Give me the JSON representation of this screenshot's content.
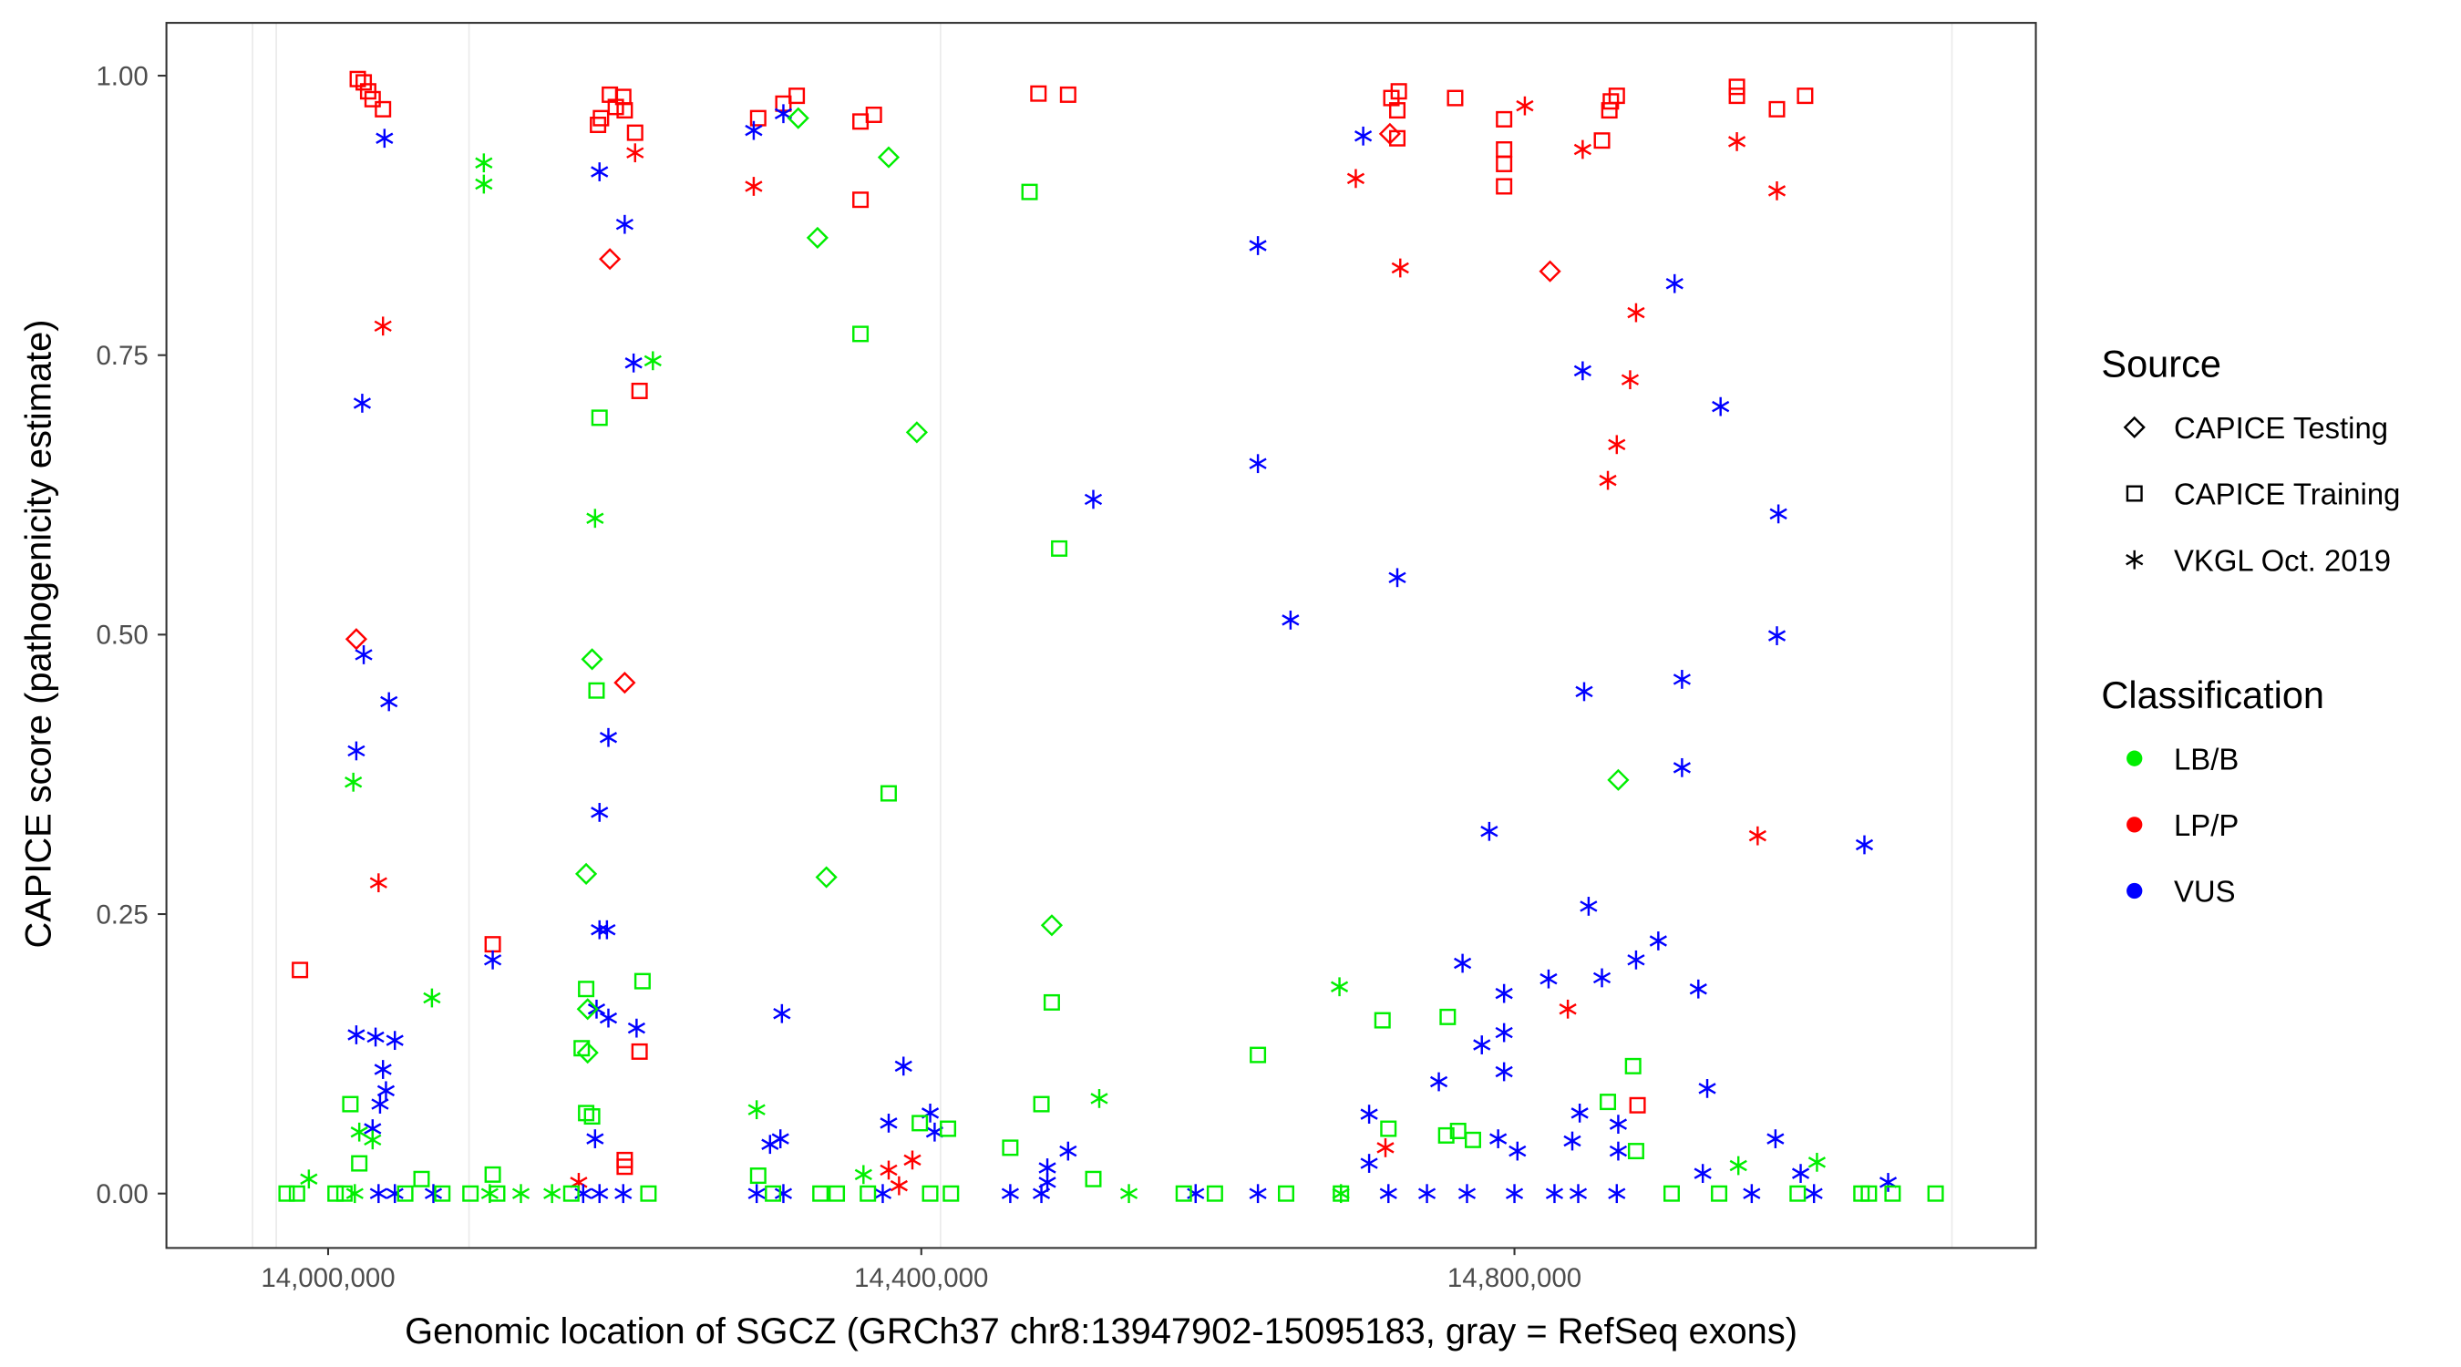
{
  "chart_data": {
    "type": "scatter",
    "title": "",
    "xlabel": "Genomic location of SGCZ (GRCh37 chr8:13947902-15095183, gray = RefSeq exons)",
    "ylabel": "CAPICE score (pathogenicity estimate)",
    "xlim": [
      13900000,
      15160000
    ],
    "ylim": [
      -0.05,
      1.05
    ],
    "x_ticks": [
      14000000,
      14400000,
      14800000
    ],
    "x_tick_labels": [
      "14,000,000",
      "14,400,000",
      "14,800,000"
    ],
    "y_ticks": [
      0,
      0.25,
      0.5,
      0.75,
      1.0
    ],
    "y_tick_labels": [
      "0.00",
      "0.25",
      "0.50",
      "0.75",
      "1.00"
    ],
    "grid": false,
    "exon_positions": [
      13949000,
      13965000,
      14095000,
      14413000,
      15095000
    ],
    "exon_color": "#ebebeb",
    "legend_placement": "right",
    "legend_source": {
      "title": "Source",
      "entries": [
        "CAPICE Testing",
        "CAPICE Training",
        "VKGL Oct. 2019"
      ],
      "shapes": [
        "diamond",
        "square",
        "asterisk"
      ]
    },
    "legend_classification": {
      "title": "Classification",
      "entries": [
        "LB/B",
        "LP/P",
        "VUS"
      ],
      "colors": [
        "#00ee00",
        "#ff0000",
        "#0000ff"
      ]
    },
    "point_fields": [
      "x",
      "y",
      "source_idx",
      "class_idx"
    ],
    "points": [
      [
        14020000,
        0.997,
        1,
        1
      ],
      [
        14024000,
        0.994,
        1,
        1
      ],
      [
        14027000,
        0.986,
        1,
        1
      ],
      [
        14030000,
        0.979,
        1,
        1
      ],
      [
        14037000,
        0.97,
        1,
        1
      ],
      [
        13981000,
        0.2,
        1,
        1
      ],
      [
        14111000,
        0.223,
        1,
        1
      ],
      [
        14182000,
        0.956,
        1,
        1
      ],
      [
        14184000,
        0.962,
        1,
        1
      ],
      [
        14190000,
        0.983,
        1,
        1
      ],
      [
        14194000,
        0.972,
        1,
        1
      ],
      [
        14199000,
        0.981,
        1,
        1
      ],
      [
        14200000,
        0.969,
        1,
        1
      ],
      [
        14207000,
        0.949,
        1,
        1
      ],
      [
        14210000,
        0.718,
        1,
        1
      ],
      [
        14210000,
        0.127,
        1,
        1
      ],
      [
        14200000,
        0.03,
        1,
        1
      ],
      [
        14200000,
        0.024,
        1,
        1
      ],
      [
        14290000,
        0.962,
        1,
        1
      ],
      [
        14307000,
        0.975,
        1,
        1
      ],
      [
        14316000,
        0.982,
        1,
        1
      ],
      [
        14359000,
        0.959,
        1,
        1
      ],
      [
        14368000,
        0.965,
        1,
        1
      ],
      [
        14359000,
        0.889,
        1,
        1
      ],
      [
        14479000,
        0.984,
        1,
        1
      ],
      [
        14499000,
        0.983,
        1,
        1
      ],
      [
        14717000,
        0.98,
        1,
        1
      ],
      [
        14722000,
        0.986,
        1,
        1
      ],
      [
        14721000,
        0.969,
        1,
        1
      ],
      [
        14721000,
        0.944,
        1,
        1
      ],
      [
        14760000,
        0.98,
        1,
        1
      ],
      [
        14793000,
        0.961,
        1,
        1
      ],
      [
        14793000,
        0.934,
        1,
        1
      ],
      [
        14793000,
        0.921,
        1,
        1
      ],
      [
        14793000,
        0.901,
        1,
        1
      ],
      [
        14859000,
        0.942,
        1,
        1
      ],
      [
        14864000,
        0.969,
        1,
        1
      ],
      [
        14865000,
        0.977,
        1,
        1
      ],
      [
        14869000,
        0.982,
        1,
        1
      ],
      [
        14950000,
        0.99,
        1,
        1
      ],
      [
        14950000,
        0.982,
        1,
        1
      ],
      [
        14977000,
        0.97,
        1,
        1
      ],
      [
        14996000,
        0.982,
        1,
        1
      ],
      [
        14883000,
        0.079,
        1,
        1
      ],
      [
        14019000,
        0.496,
        0,
        1
      ],
      [
        14190000,
        0.836,
        0,
        1
      ],
      [
        14200000,
        0.457,
        0,
        1
      ],
      [
        14716000,
        0.948,
        0,
        1
      ],
      [
        14824000,
        0.825,
        0,
        1
      ],
      [
        14037000,
        0.776,
        2,
        1
      ],
      [
        14034000,
        0.278,
        2,
        1
      ],
      [
        14207000,
        0.931,
        2,
        1
      ],
      [
        14287000,
        0.901,
        2,
        1
      ],
      [
        14807000,
        0.973,
        2,
        1
      ],
      [
        14693000,
        0.908,
        2,
        1
      ],
      [
        14723000,
        0.828,
        2,
        1
      ],
      [
        14846000,
        0.934,
        2,
        1
      ],
      [
        14950000,
        0.941,
        2,
        1
      ],
      [
        14977000,
        0.897,
        2,
        1
      ],
      [
        14882000,
        0.788,
        2,
        1
      ],
      [
        14878000,
        0.728,
        2,
        1
      ],
      [
        14869000,
        0.67,
        2,
        1
      ],
      [
        14863000,
        0.638,
        2,
        1
      ],
      [
        14964000,
        0.32,
        2,
        1
      ],
      [
        14836000,
        0.165,
        2,
        1
      ],
      [
        14713000,
        0.041,
        2,
        1
      ],
      [
        14378000,
        0.021,
        2,
        1
      ],
      [
        14394000,
        0.03,
        2,
        1
      ],
      [
        14385000,
        0.007,
        2,
        1
      ],
      [
        14169000,
        0.01,
        2,
        1
      ],
      [
        14038000,
        0.944,
        2,
        2
      ],
      [
        14023000,
        0.707,
        2,
        2
      ],
      [
        14024000,
        0.482,
        2,
        2
      ],
      [
        14041000,
        0.44,
        2,
        2
      ],
      [
        14019000,
        0.396,
        2,
        2
      ],
      [
        14111000,
        0.209,
        2,
        2
      ],
      [
        14183000,
        0.914,
        2,
        2
      ],
      [
        14200000,
        0.867,
        2,
        2
      ],
      [
        14206000,
        0.743,
        2,
        2
      ],
      [
        14189000,
        0.408,
        2,
        2
      ],
      [
        14183000,
        0.341,
        2,
        2
      ],
      [
        14183000,
        0.236,
        2,
        2
      ],
      [
        14188000,
        0.236,
        2,
        2
      ],
      [
        14181000,
        0.165,
        2,
        2
      ],
      [
        14189000,
        0.157,
        2,
        2
      ],
      [
        14208000,
        0.148,
        2,
        2
      ],
      [
        14180000,
        0.049,
        2,
        2
      ],
      [
        14019000,
        0.142,
        2,
        2
      ],
      [
        14032000,
        0.14,
        2,
        2
      ],
      [
        14045000,
        0.137,
        2,
        2
      ],
      [
        14037000,
        0.111,
        2,
        2
      ],
      [
        14039000,
        0.092,
        2,
        2
      ],
      [
        14035000,
        0.08,
        2,
        2
      ],
      [
        14030000,
        0.058,
        2,
        2
      ],
      [
        14287000,
        0.951,
        2,
        2
      ],
      [
        14307000,
        0.966,
        2,
        2
      ],
      [
        14306000,
        0.161,
        2,
        2
      ],
      [
        14388000,
        0.114,
        2,
        2
      ],
      [
        14378000,
        0.063,
        2,
        2
      ],
      [
        14406000,
        0.072,
        2,
        2
      ],
      [
        14409000,
        0.055,
        2,
        2
      ],
      [
        14298000,
        0.044,
        2,
        2
      ],
      [
        14305000,
        0.049,
        2,
        2
      ],
      [
        14516000,
        0.621,
        2,
        2
      ],
      [
        14627000,
        0.848,
        2,
        2
      ],
      [
        14627000,
        0.653,
        2,
        2
      ],
      [
        14649000,
        0.513,
        2,
        2
      ],
      [
        14698000,
        0.946,
        2,
        2
      ],
      [
        14721000,
        0.551,
        2,
        2
      ],
      [
        14846000,
        0.736,
        2,
        2
      ],
      [
        14908000,
        0.814,
        2,
        2
      ],
      [
        14939000,
        0.704,
        2,
        2
      ],
      [
        14978000,
        0.608,
        2,
        2
      ],
      [
        14977000,
        0.499,
        2,
        2
      ],
      [
        14847000,
        0.449,
        2,
        2
      ],
      [
        14913000,
        0.46,
        2,
        2
      ],
      [
        14913000,
        0.381,
        2,
        2
      ],
      [
        14783000,
        0.324,
        2,
        2
      ],
      [
        15036000,
        0.312,
        2,
        2
      ],
      [
        14850000,
        0.257,
        2,
        2
      ],
      [
        14897000,
        0.226,
        2,
        2
      ],
      [
        14882000,
        0.209,
        2,
        2
      ],
      [
        14765000,
        0.206,
        2,
        2
      ],
      [
        14823000,
        0.192,
        2,
        2
      ],
      [
        14859000,
        0.193,
        2,
        2
      ],
      [
        14924000,
        0.183,
        2,
        2
      ],
      [
        14793000,
        0.179,
        2,
        2
      ],
      [
        14793000,
        0.144,
        2,
        2
      ],
      [
        14778000,
        0.133,
        2,
        2
      ],
      [
        14749000,
        0.1,
        2,
        2
      ],
      [
        14793000,
        0.109,
        2,
        2
      ],
      [
        14930000,
        0.094,
        2,
        2
      ],
      [
        14702000,
        0.071,
        2,
        2
      ],
      [
        14844000,
        0.072,
        2,
        2
      ],
      [
        14870000,
        0.062,
        2,
        2
      ],
      [
        14789000,
        0.049,
        2,
        2
      ],
      [
        14802000,
        0.038,
        2,
        2
      ],
      [
        14976000,
        0.049,
        2,
        2
      ],
      [
        14839000,
        0.047,
        2,
        2
      ],
      [
        14870000,
        0.038,
        2,
        2
      ],
      [
        14702000,
        0.027,
        2,
        2
      ],
      [
        14927000,
        0.018,
        2,
        2
      ],
      [
        14993000,
        0.018,
        2,
        2
      ],
      [
        15052000,
        0.01,
        2,
        2
      ],
      [
        14485000,
        0.023,
        2,
        2
      ],
      [
        14499000,
        0.038,
        2,
        2
      ],
      [
        14485000,
        0.01,
        2,
        2
      ],
      [
        14034000,
        0,
        2,
        2
      ],
      [
        14045000,
        0,
        2,
        2
      ],
      [
        14071000,
        0,
        2,
        2
      ],
      [
        14172000,
        0,
        2,
        2
      ],
      [
        14183000,
        0,
        2,
        2
      ],
      [
        14199000,
        0,
        2,
        2
      ],
      [
        14289000,
        0,
        2,
        2
      ],
      [
        14307000,
        0,
        2,
        2
      ],
      [
        14374000,
        0,
        2,
        2
      ],
      [
        14460000,
        0,
        2,
        2
      ],
      [
        14481000,
        0,
        2,
        2
      ],
      [
        14585000,
        0,
        2,
        2
      ],
      [
        14627000,
        0,
        2,
        2
      ],
      [
        14715000,
        0,
        2,
        2
      ],
      [
        14741000,
        0,
        2,
        2
      ],
      [
        14768000,
        0,
        2,
        2
      ],
      [
        14800000,
        0,
        2,
        2
      ],
      [
        14827000,
        0,
        2,
        2
      ],
      [
        14843000,
        0,
        2,
        2
      ],
      [
        14869000,
        0,
        2,
        2
      ],
      [
        14960000,
        0,
        2,
        2
      ],
      [
        15002000,
        0,
        2,
        2
      ],
      [
        14105000,
        0.922,
        2,
        0
      ],
      [
        14105000,
        0.903,
        2,
        0
      ],
      [
        14017000,
        0.368,
        2,
        0
      ],
      [
        14070000,
        0.175,
        2,
        0
      ],
      [
        14180000,
        0.604,
        2,
        0
      ],
      [
        14219000,
        0.745,
        2,
        0
      ],
      [
        14289000,
        0.075,
        2,
        0
      ],
      [
        14520000,
        0.085,
        2,
        0
      ],
      [
        14682000,
        0.185,
        2,
        0
      ],
      [
        14951000,
        0.025,
        2,
        0
      ],
      [
        15004000,
        0.028,
        2,
        0
      ],
      [
        14021000,
        0.055,
        2,
        0
      ],
      [
        14030000,
        0.048,
        2,
        0
      ],
      [
        14361000,
        0.017,
        2,
        0
      ],
      [
        13987000,
        0.013,
        2,
        0
      ],
      [
        14018000,
        0,
        2,
        0
      ],
      [
        14109000,
        0,
        2,
        0
      ],
      [
        14130000,
        0,
        2,
        0
      ],
      [
        14151000,
        0,
        2,
        0
      ],
      [
        14540000,
        0,
        2,
        0
      ],
      [
        14683000,
        0,
        2,
        0
      ],
      [
        14015000,
        0.08,
        1,
        0
      ],
      [
        14174000,
        0.183,
        1,
        0
      ],
      [
        14181000,
        0.45,
        1,
        0
      ],
      [
        14183000,
        0.694,
        1,
        0
      ],
      [
        14212000,
        0.19,
        1,
        0
      ],
      [
        14171000,
        0.13,
        1,
        0
      ],
      [
        14174000,
        0.072,
        1,
        0
      ],
      [
        14178000,
        0.069,
        1,
        0
      ],
      [
        14359000,
        0.769,
        1,
        0
      ],
      [
        14378000,
        0.358,
        1,
        0
      ],
      [
        14473000,
        0.896,
        1,
        0
      ],
      [
        14493000,
        0.577,
        1,
        0
      ],
      [
        14488000,
        0.171,
        1,
        0
      ],
      [
        14481000,
        0.08,
        1,
        0
      ],
      [
        14627000,
        0.124,
        1,
        0
      ],
      [
        14711000,
        0.155,
        1,
        0
      ],
      [
        14755000,
        0.158,
        1,
        0
      ],
      [
        14880000,
        0.114,
        1,
        0
      ],
      [
        14863000,
        0.082,
        1,
        0
      ],
      [
        14399000,
        0.063,
        1,
        0
      ],
      [
        14418000,
        0.058,
        1,
        0
      ],
      [
        14460000,
        0.041,
        1,
        0
      ],
      [
        14754000,
        0.052,
        1,
        0
      ],
      [
        14762000,
        0.056,
        1,
        0
      ],
      [
        14772000,
        0.048,
        1,
        0
      ],
      [
        14715000,
        0.058,
        1,
        0
      ],
      [
        14063000,
        0.013,
        1,
        0
      ],
      [
        14111000,
        0.017,
        1,
        0
      ],
      [
        14290000,
        0.016,
        1,
        0
      ],
      [
        14516000,
        0.013,
        1,
        0
      ],
      [
        14021000,
        0.027,
        1,
        0
      ],
      [
        14882000,
        0.038,
        1,
        0
      ],
      [
        13972000,
        0,
        1,
        0
      ],
      [
        13979000,
        0,
        1,
        0
      ],
      [
        14005000,
        0,
        1,
        0
      ],
      [
        14011000,
        0,
        1,
        0
      ],
      [
        14052000,
        0,
        1,
        0
      ],
      [
        14077000,
        0,
        1,
        0
      ],
      [
        14096000,
        0,
        1,
        0
      ],
      [
        14114000,
        0,
        1,
        0
      ],
      [
        14164000,
        0,
        1,
        0
      ],
      [
        14216000,
        0,
        1,
        0
      ],
      [
        14300000,
        0,
        1,
        0
      ],
      [
        14332000,
        0,
        1,
        0
      ],
      [
        14343000,
        0,
        1,
        0
      ],
      [
        14364000,
        0,
        1,
        0
      ],
      [
        14406000,
        0,
        1,
        0
      ],
      [
        14420000,
        0,
        1,
        0
      ],
      [
        14577000,
        0,
        1,
        0
      ],
      [
        14598000,
        0,
        1,
        0
      ],
      [
        14646000,
        0,
        1,
        0
      ],
      [
        14683000,
        0,
        1,
        0
      ],
      [
        14906000,
        0,
        1,
        0
      ],
      [
        14938000,
        0,
        1,
        0
      ],
      [
        14991000,
        0,
        1,
        0
      ],
      [
        15034000,
        0,
        1,
        0
      ],
      [
        15039000,
        0,
        1,
        0
      ],
      [
        15055000,
        0,
        1,
        0
      ],
      [
        15084000,
        0,
        1,
        0
      ],
      [
        14178000,
        0.478,
        0,
        0
      ],
      [
        14174000,
        0.286,
        0,
        0
      ],
      [
        14175000,
        0.126,
        0,
        0
      ],
      [
        14175000,
        0.165,
        0,
        0
      ],
      [
        14317000,
        0.962,
        0,
        0
      ],
      [
        14330000,
        0.855,
        0,
        0
      ],
      [
        14378000,
        0.927,
        0,
        0
      ],
      [
        14397000,
        0.681,
        0,
        0
      ],
      [
        14336000,
        0.283,
        0,
        0
      ],
      [
        14488000,
        0.24,
        0,
        0
      ],
      [
        14870000,
        0.37,
        0,
        0
      ]
    ]
  }
}
